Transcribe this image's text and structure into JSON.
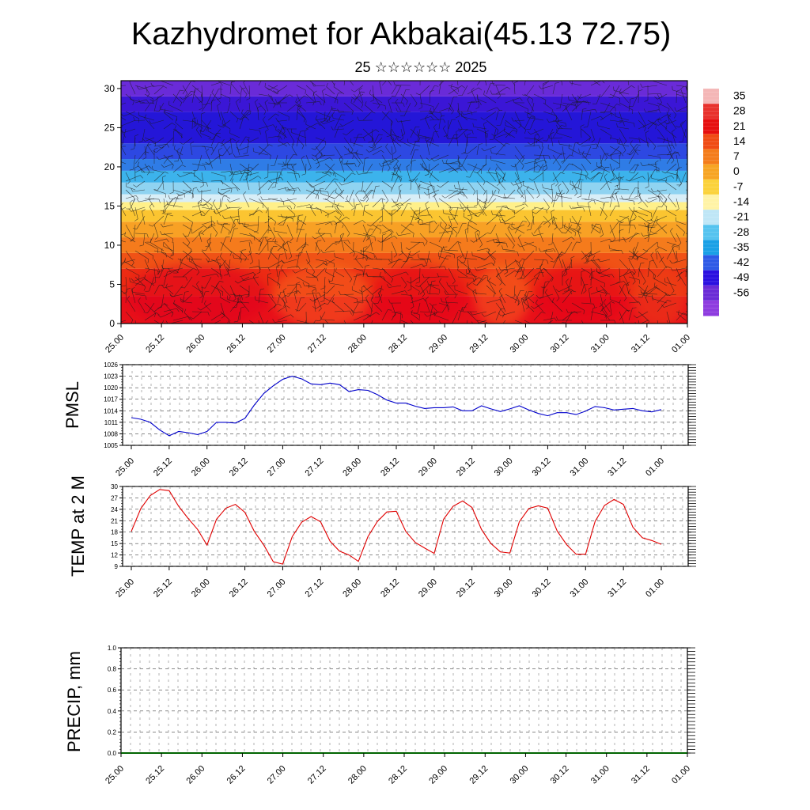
{
  "title": "Kazhydromet for Akbakai(45.13 72.75)",
  "subtitle": "25 ☆☆☆☆☆☆ 2025",
  "chart_data": [
    {
      "type": "heatmap",
      "ylim": [
        0,
        31
      ],
      "yticks": [
        "0",
        "5",
        "10",
        "15",
        "20",
        "25",
        "30"
      ],
      "xticks": [
        "25.00",
        "25.12",
        "26.00",
        "26.12",
        "27.00",
        "27.12",
        "28.00",
        "28.12",
        "29.00",
        "29.12",
        "30.00",
        "30.12",
        "31.00",
        "31.12",
        "01.00"
      ],
      "colorbar_labels": [
        "35",
        "28",
        "21",
        "14",
        "7",
        "0",
        "-7",
        "-14",
        "-21",
        "-28",
        "-35",
        "-42",
        "-49",
        "-56"
      ],
      "colorbar_colors": [
        "#f4b6b6",
        "#e8312c",
        "#e60f0f",
        "#f04b14",
        "#f47c1a",
        "#f7a423",
        "#fbd23b",
        "#fff3a6",
        "#bfe6f6",
        "#55c3ef",
        "#1aa0e6",
        "#2e5ae6",
        "#2b10e0",
        "#6b2bd6",
        "#8e3cdf"
      ],
      "wind_barbs": true
    },
    {
      "type": "line",
      "ylabel": "PMSL",
      "ylim": [
        1005,
        1026
      ],
      "yticks": [
        "1005",
        "1008",
        "1011",
        "1014",
        "1017",
        "1020",
        "1023",
        "1026"
      ],
      "xticks": [
        "25.00",
        "25.12",
        "26.00",
        "26.12",
        "27.00",
        "27.12",
        "28.00",
        "28.12",
        "29.00",
        "29.12",
        "30.00",
        "30.12",
        "31.00",
        "31.12",
        "01.00"
      ],
      "color": "#0000cc",
      "x": [
        0,
        3,
        6,
        9,
        12,
        15,
        18,
        21,
        24,
        27,
        30,
        33,
        36,
        39,
        42,
        45,
        48,
        51,
        54,
        57,
        60,
        63,
        66,
        69,
        72,
        75,
        78,
        81,
        84,
        87,
        90,
        93,
        96,
        99,
        102,
        105,
        108,
        111,
        114,
        117,
        120,
        123,
        126,
        129,
        132,
        135,
        138,
        141,
        144,
        147,
        150,
        153,
        156,
        159,
        162,
        165,
        168
      ],
      "values": [
        1012.2,
        1011.8,
        1011.0,
        1009.0,
        1007.5,
        1008.6,
        1008.3,
        1007.8,
        1008.6,
        1011.0,
        1011.0,
        1010.8,
        1012.0,
        1015.5,
        1018.5,
        1020.5,
        1022.2,
        1023.0,
        1022.3,
        1021.0,
        1020.8,
        1021.2,
        1020.8,
        1019.0,
        1019.5,
        1019.3,
        1018.2,
        1016.8,
        1016.0,
        1016.0,
        1015.2,
        1014.6,
        1014.8,
        1014.8,
        1015.0,
        1014.0,
        1014.0,
        1015.3,
        1014.5,
        1013.8,
        1014.5,
        1015.3,
        1014.2,
        1013.3,
        1012.7,
        1013.5,
        1013.5,
        1013.0,
        1013.9,
        1015.1,
        1014.8,
        1014.2,
        1014.4,
        1014.6,
        1014.0,
        1013.7,
        1014.3
      ]
    },
    {
      "type": "line",
      "ylabel": "TEMP at 2 M",
      "ylim": [
        9,
        30
      ],
      "yticks": [
        "9",
        "12",
        "15",
        "18",
        "21",
        "24",
        "27",
        "30"
      ],
      "xticks": [
        "25.00",
        "25.12",
        "26.00",
        "26.12",
        "27.00",
        "27.12",
        "28.00",
        "28.12",
        "29.00",
        "29.12",
        "30.00",
        "30.12",
        "31.00",
        "31.12",
        "01.00"
      ],
      "color": "#e00000",
      "x": [
        0,
        3,
        6,
        9,
        12,
        15,
        18,
        21,
        24,
        27,
        30,
        33,
        36,
        39,
        42,
        45,
        48,
        51,
        54,
        57,
        60,
        63,
        66,
        69,
        72,
        75,
        78,
        81,
        84,
        87,
        90,
        93,
        96,
        99,
        102,
        105,
        108,
        111,
        114,
        117,
        120,
        123,
        126,
        129,
        132,
        135,
        138,
        141,
        144,
        147,
        150,
        153,
        156,
        159,
        162,
        165,
        168
      ],
      "values": [
        18.2,
        24.2,
        27.6,
        29.2,
        28.9,
        24.8,
        21.6,
        18.7,
        14.6,
        21.4,
        24.3,
        25.3,
        23.2,
        18.2,
        14.6,
        10.2,
        9.6,
        16.8,
        20.6,
        22.1,
        20.7,
        15.6,
        13.0,
        12.0,
        10.3,
        16.8,
        20.8,
        23.3,
        23.5,
        18.2,
        15.3,
        13.8,
        12.4,
        21.4,
        24.8,
        26.2,
        24.5,
        18.7,
        15.0,
        12.8,
        12.5,
        20.7,
        24.2,
        24.9,
        24.3,
        18.3,
        14.7,
        12.2,
        12.2,
        20.8,
        25.0,
        26.6,
        25.3,
        19.3,
        16.5,
        15.8,
        14.8
      ]
    },
    {
      "type": "line",
      "ylabel": "PRECIP, mm",
      "ylim": [
        0,
        1
      ],
      "yticks": [
        "0.0",
        "0.2",
        "0.4",
        "0.6",
        "0.8",
        "1.0"
      ],
      "xticks": [
        "25.00",
        "25.12",
        "26.00",
        "26.12",
        "27.00",
        "27.12",
        "28.00",
        "28.12",
        "29.00",
        "29.12",
        "30.00",
        "30.12",
        "31.00",
        "31.12",
        "01.00"
      ],
      "color": "#006400",
      "x": [
        0,
        168
      ],
      "values": [
        0,
        0
      ]
    }
  ]
}
